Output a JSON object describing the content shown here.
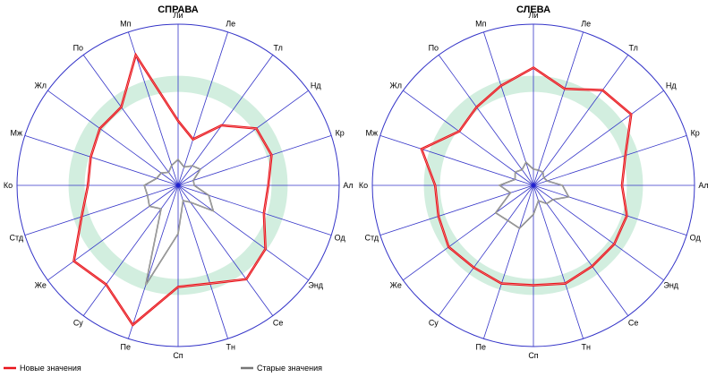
{
  "chart_data": [
    {
      "type": "radar",
      "title": "СПРАВА",
      "axes": [
        "Ли",
        "Ле",
        "Тл",
        "Нд",
        "Кр",
        "Ал",
        "Од",
        "Энд",
        "Се",
        "Тн",
        "Сп",
        "Пе",
        "Су",
        "Же",
        "Стд",
        "Ко",
        "Мж",
        "Жл",
        "По",
        "Мп"
      ],
      "rlim": [
        0,
        100
      ],
      "norm_band": [
        58,
        68
      ],
      "series": [
        {
          "name": "Новые значения",
          "color": "#e8141b",
          "values": [
            40,
            30,
            46,
            60,
            61,
            56,
            56,
            67,
            72,
            64,
            63,
            91,
            76,
            80,
            63,
            56,
            57,
            60,
            60,
            85
          ]
        },
        {
          "name": "Старые значения",
          "color": "#777777",
          "values": [
            16,
            12,
            15,
            17,
            10,
            10,
            20,
            27,
            13,
            10,
            30,
            65,
            18,
            22,
            20,
            21,
            14,
            13,
            10,
            13
          ]
        }
      ]
    },
    {
      "type": "radar",
      "title": "СЛЕВА",
      "axes": [
        "Ли",
        "Ле",
        "Тл",
        "Нд",
        "Кр",
        "Ал",
        "Од",
        "Энд",
        "Се",
        "Тн",
        "Сп",
        "Пе",
        "Су",
        "Же",
        "Стд",
        "Ко",
        "Мж",
        "Жл",
        "По",
        "Мп"
      ],
      "rlim": [
        0,
        100
      ],
      "norm_band": [
        58,
        68
      ],
      "series": [
        {
          "name": "Новые значения",
          "color": "#e8141b",
          "values": [
            73,
            63,
            73,
            75,
            60,
            55,
            61,
            62,
            62,
            64,
            62,
            64,
            63,
            65,
            62,
            61,
            73,
            57,
            60,
            65
          ]
        },
        {
          "name": "Старые значения",
          "color": "#777777",
          "values": [
            10,
            10,
            10,
            8,
            9,
            18,
            23,
            15,
            14,
            10,
            18,
            28,
            27,
            29,
            15,
            21,
            12,
            14,
            12,
            15
          ]
        }
      ]
    }
  ],
  "legend": {
    "new_label": "Новые значения",
    "old_label": "Старые значения"
  }
}
